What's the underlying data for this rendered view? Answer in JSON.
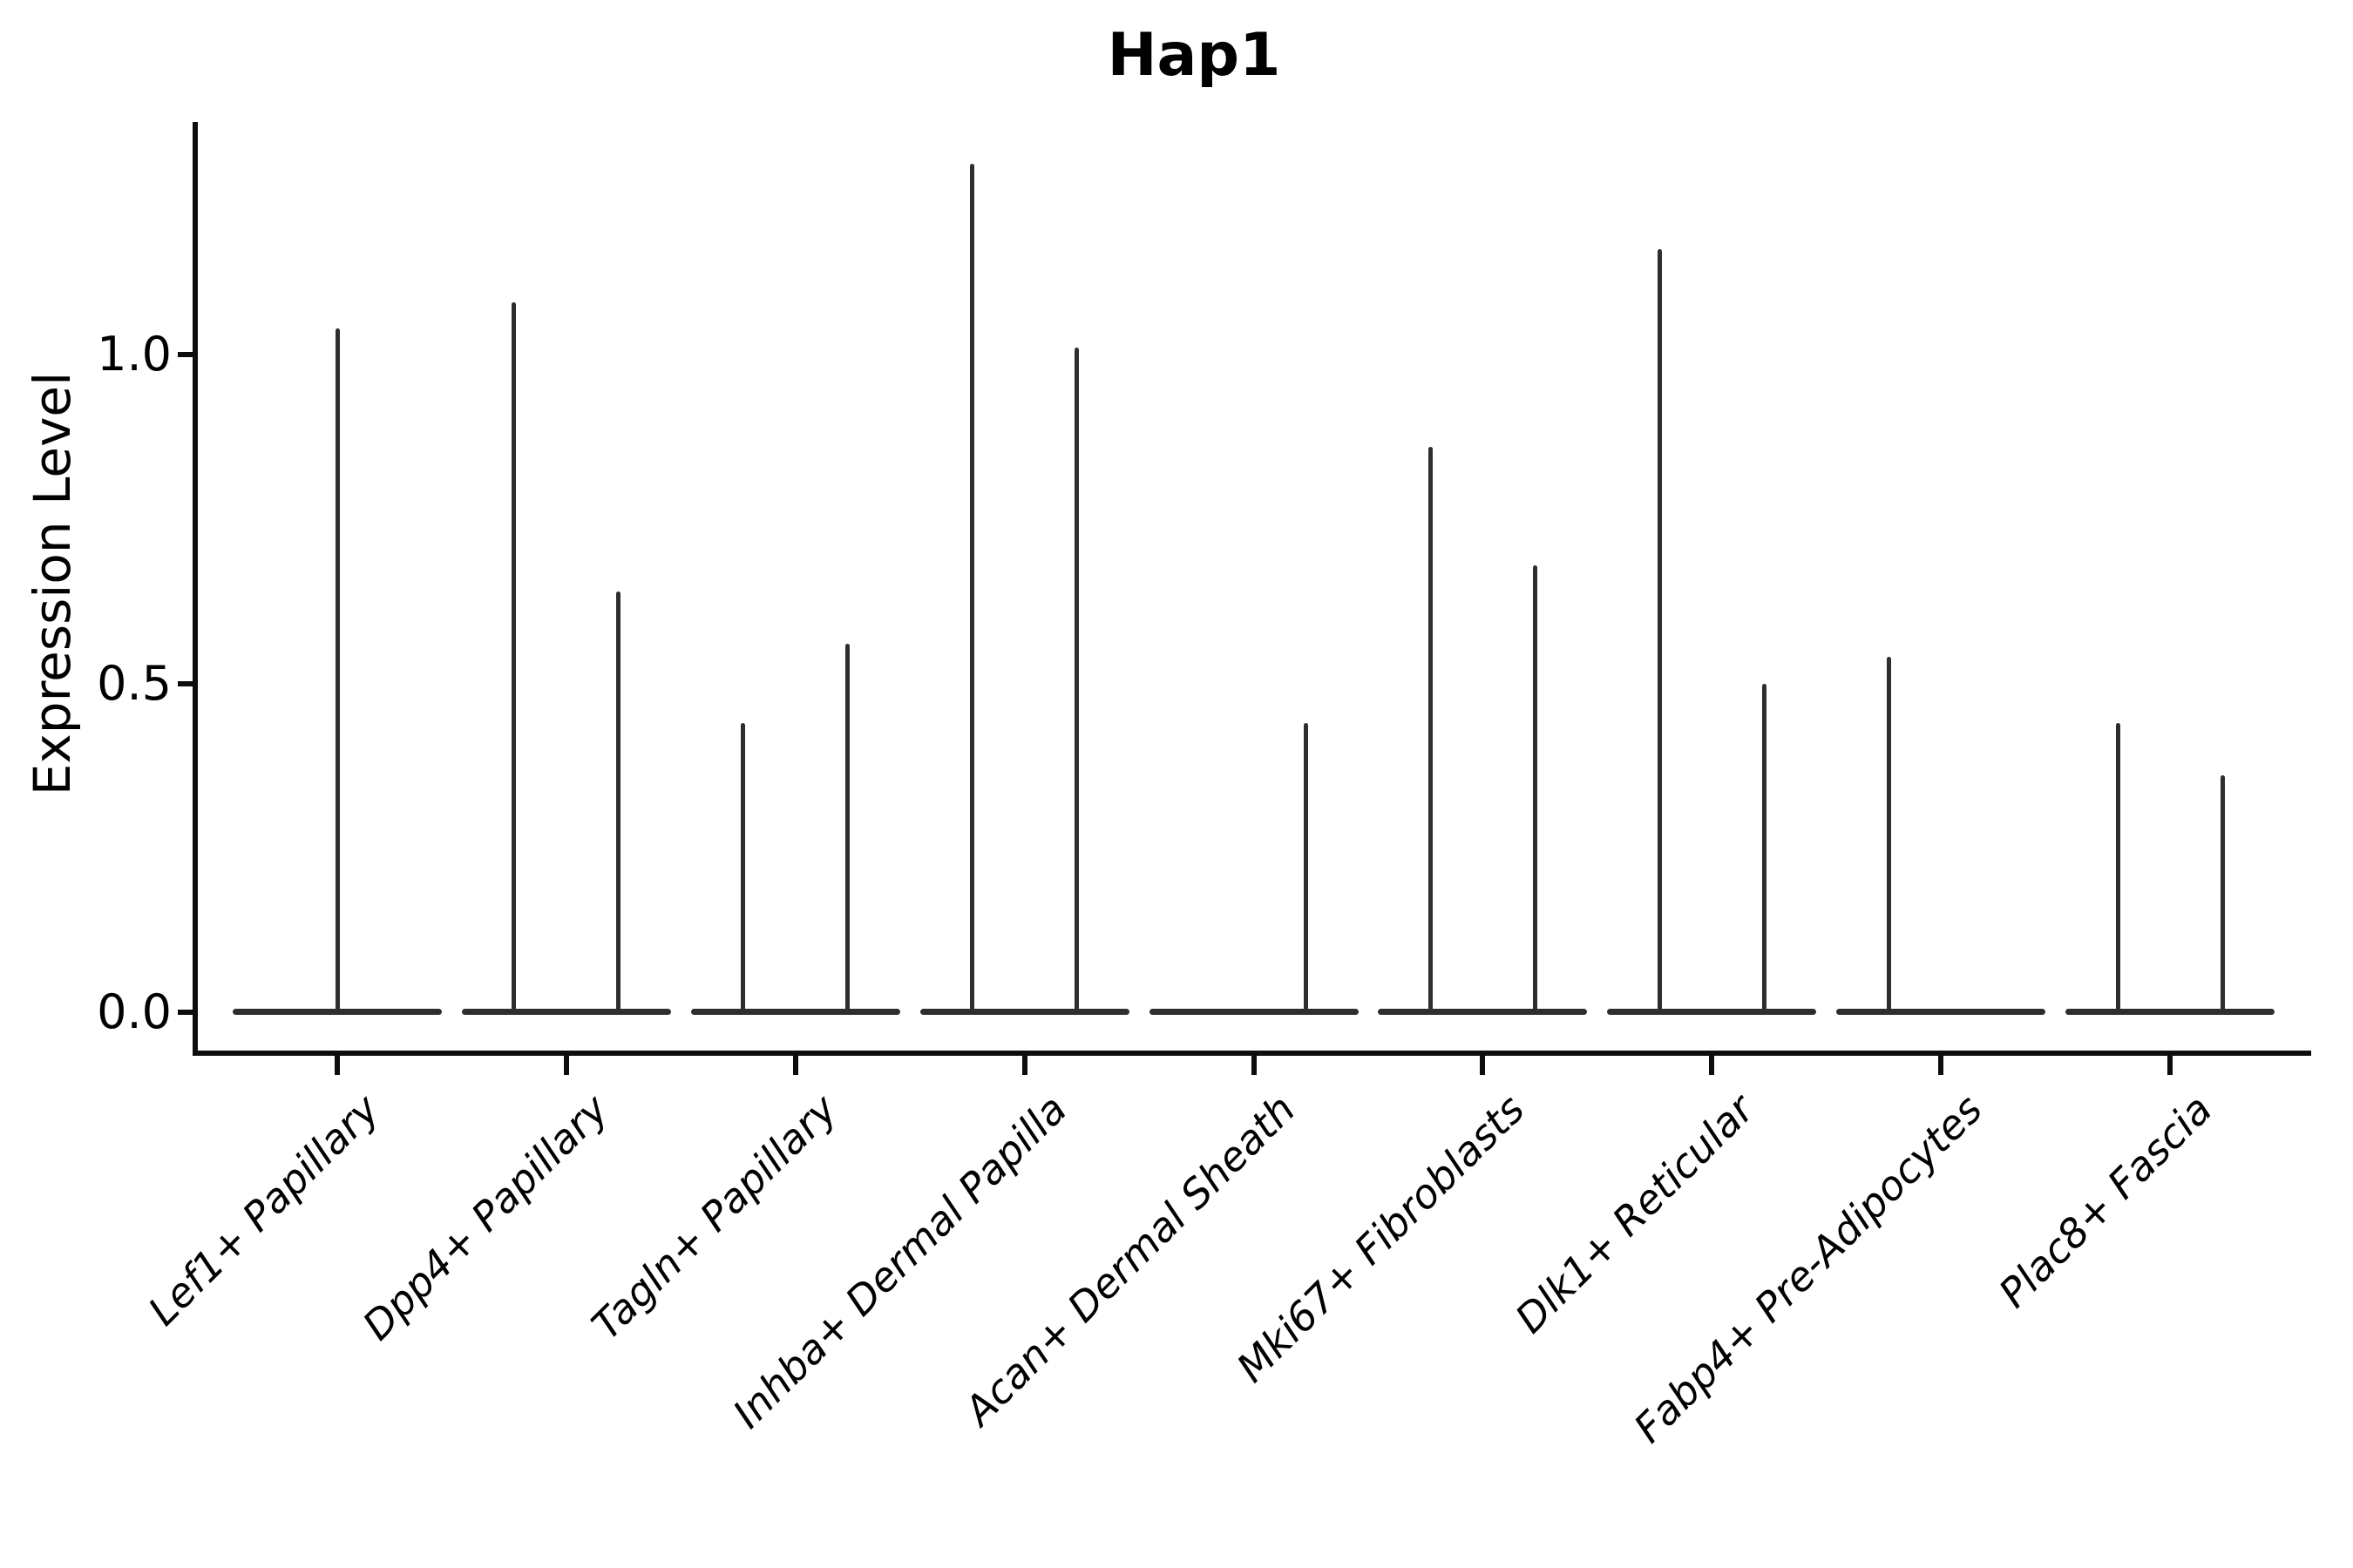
{
  "chart_data": {
    "type": "violin",
    "title": "Hap1",
    "xlabel": "",
    "ylabel": "Expression Level",
    "yticks": [
      {
        "value": 0.0,
        "label": "0.0"
      },
      {
        "value": 0.5,
        "label": "0.5"
      },
      {
        "value": 1.0,
        "label": "1.0"
      }
    ],
    "ylim": [
      -0.06,
      1.35
    ],
    "grid": false,
    "spines": [
      "left",
      "bottom"
    ],
    "legend": "none",
    "description": "Split violin plot of Hap1 expression per fibroblast cell type; each violin is collapsed at 0 (most cells non-expressing) with a thin density spike reaching the maximum expression value.",
    "categories": [
      "Lef1+ Papillary",
      "Dpp4+ Papillary",
      "Tagln+ Papillary",
      "Inhba+ Dermal Papilla",
      "Acan+ Dermal Sheath",
      "Mki67+ Fibroblasts",
      "Dlk1+ Reticular",
      "Fabp4+ Pre-Adipocytes",
      "Plac8+ Fascia"
    ],
    "violins": [
      {
        "category": "Lef1+ Papillary",
        "spikes": [
          {
            "group": "center",
            "max": 1.04
          }
        ]
      },
      {
        "category": "Dpp4+ Papillary",
        "spikes": [
          {
            "group": "left",
            "max": 1.08
          },
          {
            "group": "right",
            "max": 0.64
          }
        ]
      },
      {
        "category": "Tagln+ Papillary",
        "spikes": [
          {
            "group": "left",
            "max": 0.44
          },
          {
            "group": "right",
            "max": 0.56
          }
        ]
      },
      {
        "category": "Inhba+ Dermal Papilla",
        "spikes": [
          {
            "group": "left",
            "max": 1.29
          },
          {
            "group": "right",
            "max": 1.01
          }
        ]
      },
      {
        "category": "Acan+ Dermal Sheath",
        "spikes": [
          {
            "group": "left",
            "max": 0.0
          },
          {
            "group": "right",
            "max": 0.44
          }
        ]
      },
      {
        "category": "Mki67+ Fibroblasts",
        "spikes": [
          {
            "group": "left",
            "max": 0.86
          },
          {
            "group": "right",
            "max": 0.68
          }
        ]
      },
      {
        "category": "Dlk1+ Reticular",
        "spikes": [
          {
            "group": "left",
            "max": 1.16
          },
          {
            "group": "right",
            "max": 0.5
          }
        ]
      },
      {
        "category": "Fabp4+ Pre-Adipocytes",
        "spikes": [
          {
            "group": "left",
            "max": 0.54
          },
          {
            "group": "right",
            "max": 0.0
          }
        ]
      },
      {
        "category": "Plac8+ Fascia",
        "spikes": [
          {
            "group": "left",
            "max": 0.44
          },
          {
            "group": "right",
            "max": 0.36
          }
        ]
      }
    ],
    "colors": {
      "violin": "#2e2e2e",
      "axis": "#0d0d0d",
      "text": "#000000",
      "background": "#ffffff"
    }
  }
}
